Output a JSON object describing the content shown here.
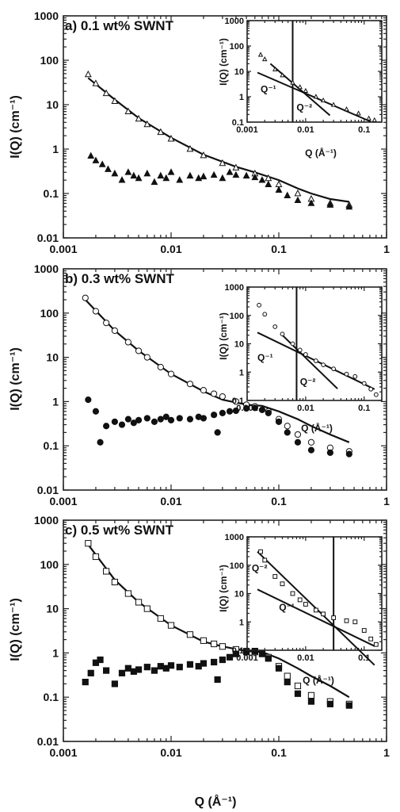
{
  "chart_data": [
    {
      "type": "scatter",
      "title": "a) 0.1 wt% SWNT",
      "xlabel": "",
      "ylabel": "I(Q) (cm⁻¹)",
      "xscale": "log",
      "yscale": "log",
      "xlim": [
        0.001,
        1
      ],
      "ylim": [
        0.01,
        1000
      ],
      "x_ticks": [
        "0.001",
        "0.01",
        "0.1",
        "1"
      ],
      "y_ticks": [
        "0.01",
        "0.1",
        "1",
        "10",
        "100",
        "1000"
      ],
      "marker": "triangle",
      "series": [
        {
          "kind": "open",
          "x": [
            0.0017,
            0.002,
            0.0025,
            0.003,
            0.004,
            0.005,
            0.006,
            0.008,
            0.01,
            0.015,
            0.02,
            0.03,
            0.04,
            0.06,
            0.08,
            0.1,
            0.15,
            0.2,
            0.3,
            0.45
          ],
          "y": [
            48,
            30,
            18,
            12,
            7,
            4.8,
            3.6,
            2.4,
            1.7,
            1.0,
            0.72,
            0.48,
            0.38,
            0.28,
            0.22,
            0.16,
            0.1,
            0.075,
            0.06,
            0.055
          ]
        },
        {
          "kind": "filled",
          "x": [
            0.0018,
            0.002,
            0.0023,
            0.0026,
            0.003,
            0.0035,
            0.004,
            0.0045,
            0.005,
            0.006,
            0.007,
            0.008,
            0.009,
            0.01,
            0.012,
            0.015,
            0.018,
            0.02,
            0.025,
            0.03,
            0.035,
            0.04,
            0.05,
            0.06,
            0.07,
            0.08,
            0.1,
            0.12,
            0.15,
            0.2,
            0.3,
            0.45
          ],
          "y": [
            0.7,
            0.55,
            0.45,
            0.35,
            0.28,
            0.2,
            0.3,
            0.25,
            0.22,
            0.28,
            0.18,
            0.25,
            0.22,
            0.3,
            0.2,
            0.25,
            0.22,
            0.24,
            0.26,
            0.22,
            0.3,
            0.26,
            0.25,
            0.23,
            0.2,
            0.16,
            0.12,
            0.09,
            0.07,
            0.06,
            0.055,
            0.05
          ]
        }
      ],
      "fit": {
        "x": [
          0.0017,
          0.003,
          0.005,
          0.01,
          0.02,
          0.04,
          0.06,
          0.1,
          0.15,
          0.2,
          0.3,
          0.45
        ],
        "y": [
          40,
          13,
          5,
          1.8,
          0.75,
          0.4,
          0.3,
          0.2,
          0.13,
          0.1,
          0.075,
          0.065
        ]
      },
      "inset": {
        "xlabel": "Q (Å⁻¹)",
        "ylabel": "I(Q) (cm⁻¹)",
        "xlim": [
          0.001,
          0.2
        ],
        "ylim": [
          0.1,
          1000
        ],
        "x_ticks": [
          "0.001",
          "0.01",
          "0.1"
        ],
        "y_ticks": [
          "0.1",
          "1",
          "10",
          "100",
          "1000"
        ],
        "data": {
          "x": [
            0.0017,
            0.002,
            0.003,
            0.004,
            0.006,
            0.008,
            0.01,
            0.015,
            0.02,
            0.03,
            0.05,
            0.08,
            0.12,
            0.15
          ],
          "y": [
            45,
            30,
            12,
            7,
            3.6,
            2.4,
            1.7,
            1.0,
            0.72,
            0.48,
            0.32,
            0.22,
            0.14,
            0.12
          ]
        },
        "vline_x": 0.006,
        "power_lines": [
          {
            "label": "Q⁻¹",
            "x": [
              0.0015,
              0.13
            ],
            "y": [
              9,
              0.104
            ],
            "label_pos": [
              0.0017,
              1.5
            ]
          },
          {
            "label": "Q⁻²",
            "x": [
              0.0025,
              0.026
            ],
            "y": [
              20,
              0.185
            ],
            "label_pos": [
              0.007,
              0.28
            ]
          }
        ]
      }
    },
    {
      "type": "scatter",
      "title": "b) 0.3 wt% SWNT",
      "xlabel": "",
      "ylabel": "I(Q) (cm⁻¹)",
      "xscale": "log",
      "yscale": "log",
      "xlim": [
        0.001,
        1
      ],
      "ylim": [
        0.01,
        1000
      ],
      "x_ticks": [
        "0.001",
        "0.01",
        "0.1",
        "1"
      ],
      "y_ticks": [
        "0.01",
        "0.1",
        "1",
        "10",
        "100",
        "1000"
      ],
      "marker": "circle",
      "series": [
        {
          "kind": "open",
          "x": [
            0.0016,
            0.002,
            0.0025,
            0.003,
            0.004,
            0.005,
            0.006,
            0.008,
            0.01,
            0.015,
            0.02,
            0.025,
            0.03,
            0.04,
            0.05,
            0.06,
            0.08,
            0.1,
            0.12,
            0.15,
            0.2,
            0.3,
            0.45
          ],
          "y": [
            220,
            110,
            60,
            40,
            22,
            14,
            10,
            6,
            4.2,
            2.5,
            1.8,
            1.5,
            1.3,
            1.0,
            0.85,
            0.78,
            0.6,
            0.4,
            0.28,
            0.18,
            0.12,
            0.09,
            0.075
          ]
        },
        {
          "kind": "filled",
          "x": [
            0.0017,
            0.002,
            0.0022,
            0.0025,
            0.003,
            0.0035,
            0.004,
            0.0045,
            0.005,
            0.006,
            0.007,
            0.008,
            0.009,
            0.01,
            0.012,
            0.015,
            0.018,
            0.02,
            0.025,
            0.027,
            0.03,
            0.035,
            0.04,
            0.05,
            0.06,
            0.07,
            0.08,
            0.1,
            0.12,
            0.15,
            0.2,
            0.3,
            0.45
          ],
          "y": [
            1.1,
            0.6,
            0.12,
            0.28,
            0.35,
            0.3,
            0.4,
            0.33,
            0.38,
            0.42,
            0.35,
            0.4,
            0.45,
            0.38,
            0.42,
            0.4,
            0.45,
            0.42,
            0.5,
            0.2,
            0.55,
            0.6,
            0.62,
            0.7,
            0.72,
            0.65,
            0.55,
            0.35,
            0.2,
            0.12,
            0.08,
            0.07,
            0.065
          ]
        }
      ],
      "fit": {
        "x": [
          0.0016,
          0.003,
          0.005,
          0.01,
          0.02,
          0.03,
          0.05,
          0.07,
          0.1,
          0.15,
          0.2,
          0.3,
          0.45
        ],
        "y": [
          200,
          40,
          14,
          4.2,
          1.7,
          1.1,
          0.85,
          0.8,
          0.6,
          0.4,
          0.28,
          0.18,
          0.12
        ]
      },
      "inset": {
        "xlabel": "Q (Å⁻¹)",
        "ylabel": "I(Q) (cm⁻¹)",
        "xlim": [
          0.001,
          0.2
        ],
        "ylim": [
          0.1,
          1000
        ],
        "x_ticks": [
          "0.001",
          "0.01",
          "0.1"
        ],
        "y_ticks": [
          "0.1",
          "1",
          "10",
          "100",
          "1000"
        ],
        "data": {
          "x": [
            0.0016,
            0.002,
            0.003,
            0.004,
            0.006,
            0.008,
            0.01,
            0.015,
            0.02,
            0.03,
            0.05,
            0.07,
            0.1,
            0.13,
            0.16
          ],
          "y": [
            230,
            110,
            40,
            22,
            10,
            6,
            4.2,
            2.5,
            1.8,
            1.3,
            0.85,
            0.7,
            0.4,
            0.25,
            0.16
          ]
        },
        "vline_x": 0.007,
        "power_lines": [
          {
            "label": "Q⁻¹",
            "x": [
              0.0015,
              0.15
            ],
            "y": [
              25,
              0.25
            ],
            "label_pos": [
              0.0015,
              2.5
            ]
          },
          {
            "label": "Q⁻²",
            "x": [
              0.004,
              0.035
            ],
            "y": [
              20,
              0.26
            ],
            "label_pos": [
              0.008,
              0.35
            ]
          }
        ]
      }
    },
    {
      "type": "scatter",
      "title": "c) 0.5 wt% SWNT",
      "xlabel": "Q (Å⁻¹)",
      "ylabel": "I(Q) (cm⁻¹)",
      "xscale": "log",
      "yscale": "log",
      "xlim": [
        0.001,
        1
      ],
      "ylim": [
        0.01,
        1000
      ],
      "x_ticks": [
        "0.001",
        "0.01",
        "0.1",
        "1"
      ],
      "y_ticks": [
        "0.01",
        "0.1",
        "1",
        "10",
        "100",
        "1000"
      ],
      "marker": "square",
      "series": [
        {
          "kind": "open",
          "x": [
            0.0017,
            0.002,
            0.0025,
            0.003,
            0.004,
            0.005,
            0.006,
            0.008,
            0.01,
            0.015,
            0.02,
            0.025,
            0.03,
            0.04,
            0.05,
            0.06,
            0.08,
            0.1,
            0.12,
            0.15,
            0.2,
            0.3,
            0.45
          ],
          "y": [
            300,
            150,
            70,
            40,
            22,
            14,
            10,
            6,
            4.2,
            2.6,
            1.9,
            1.6,
            1.4,
            1.2,
            1.1,
            1.05,
            0.8,
            0.5,
            0.3,
            0.18,
            0.11,
            0.08,
            0.07
          ]
        },
        {
          "kind": "filled",
          "x": [
            0.0016,
            0.0018,
            0.002,
            0.0022,
            0.0025,
            0.003,
            0.0035,
            0.004,
            0.0045,
            0.005,
            0.006,
            0.007,
            0.008,
            0.009,
            0.01,
            0.012,
            0.015,
            0.018,
            0.02,
            0.025,
            0.027,
            0.03,
            0.035,
            0.04,
            0.05,
            0.06,
            0.07,
            0.08,
            0.1,
            0.12,
            0.15,
            0.2,
            0.3,
            0.45
          ],
          "y": [
            0.22,
            0.35,
            0.6,
            0.7,
            0.4,
            0.2,
            0.35,
            0.45,
            0.38,
            0.42,
            0.48,
            0.4,
            0.5,
            0.45,
            0.52,
            0.48,
            0.55,
            0.5,
            0.58,
            0.62,
            0.25,
            0.7,
            0.8,
            0.95,
            1.05,
            1.1,
            0.95,
            0.75,
            0.45,
            0.22,
            0.12,
            0.08,
            0.07,
            0.065
          ]
        }
      ],
      "fit": {
        "x": [
          0.0017,
          0.003,
          0.005,
          0.01,
          0.02,
          0.03,
          0.05,
          0.07,
          0.1,
          0.15,
          0.2,
          0.3,
          0.45
        ],
        "y": [
          280,
          45,
          14,
          4.2,
          1.8,
          1.4,
          1.1,
          1.05,
          0.75,
          0.45,
          0.3,
          0.18,
          0.1
        ]
      },
      "inset": {
        "xlabel": "Q (Å⁻¹)",
        "ylabel": "I(Q) (cm⁻¹)",
        "xlim": [
          0.001,
          0.2
        ],
        "ylim": [
          0.1,
          1000
        ],
        "x_ticks": [
          "0.001",
          "0.01",
          "0.1"
        ],
        "y_ticks": [
          "0.1",
          "1",
          "10",
          "100",
          "1000"
        ],
        "data": {
          "x": [
            0.0017,
            0.002,
            0.003,
            0.004,
            0.006,
            0.008,
            0.01,
            0.015,
            0.02,
            0.03,
            0.05,
            0.07,
            0.1,
            0.13,
            0.16
          ],
          "y": [
            300,
            150,
            40,
            22,
            10,
            6,
            4.2,
            2.6,
            1.9,
            1.4,
            1.1,
            1.0,
            0.5,
            0.25,
            0.16
          ]
        },
        "vline_x": 0.03,
        "power_lines": [
          {
            "label": "Q⁻²",
            "x": [
              0.0015,
              0.15
            ],
            "y": [
              300,
              0.03
            ],
            "label_pos": [
              0.0012,
              60
            ]
          },
          {
            "label": "Q⁻¹",
            "x": [
              0.0015,
              0.15
            ],
            "y": [
              14,
              0.14
            ],
            "label_pos": [
              0.0035,
              2.5
            ]
          }
        ]
      }
    }
  ]
}
